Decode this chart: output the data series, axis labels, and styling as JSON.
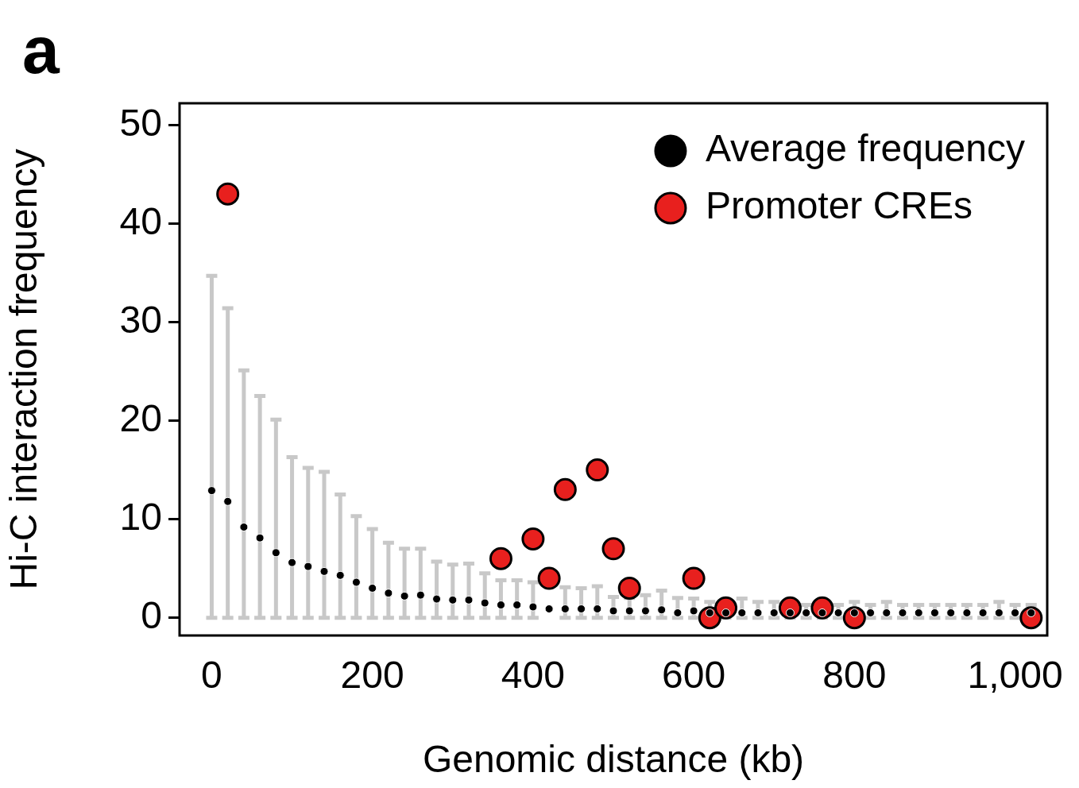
{
  "chart_data": {
    "type": "scatter",
    "annotations": [
      "a"
    ],
    "xlabel": "Genomic distance (kb)",
    "ylabel": "Hi-C interaction frequency",
    "xlim": [
      -40,
      1040
    ],
    "ylim": [
      -1.8,
      52.2
    ],
    "xticks": [
      0,
      200,
      400,
      600,
      800,
      {
        "value": 1000,
        "label": "1,000"
      }
    ],
    "yticks": [
      0,
      10,
      20,
      30,
      40,
      50
    ],
    "grid": false,
    "legend": "top right",
    "marker": "circle",
    "series": [
      {
        "name": "Average frequency",
        "color": "#000000",
        "x": [
          0,
          20,
          40,
          60,
          80,
          100,
          120,
          140,
          160,
          180,
          200,
          220,
          240,
          260,
          280,
          300,
          320,
          340,
          360,
          380,
          400,
          420,
          440,
          460,
          480,
          500,
          520,
          540,
          560,
          580,
          600,
          620,
          640,
          660,
          680,
          700,
          720,
          740,
          760,
          780,
          800,
          820,
          840,
          860,
          880,
          900,
          920,
          940,
          960,
          980,
          1000,
          1020
        ],
        "values": [
          12.9,
          11.8,
          9.2,
          8.1,
          6.6,
          5.6,
          5.2,
          4.7,
          4.3,
          3.6,
          3.0,
          2.5,
          2.2,
          2.3,
          1.9,
          1.8,
          1.8,
          1.5,
          1.3,
          1.3,
          1.1,
          0.9,
          0.9,
          0.9,
          0.9,
          0.7,
          0.7,
          0.7,
          0.8,
          0.5,
          0.7,
          0.5,
          0.5,
          0.5,
          0.5,
          0.5,
          0.5,
          0.5,
          0.5,
          0.5,
          0.5,
          0.5,
          0.5,
          0.5,
          0.5,
          0.5,
          0.5,
          0.5,
          0.5,
          0.5,
          0.5,
          0.5
        ],
        "errors": [
          [
            0,
            34.7
          ],
          [
            0,
            31.4
          ],
          [
            0,
            25.1
          ],
          [
            0,
            22.5
          ],
          [
            0,
            20.1
          ],
          [
            0,
            16.3
          ],
          [
            0,
            15.2
          ],
          [
            0,
            14.8
          ],
          [
            0,
            12.5
          ],
          [
            0,
            10.3
          ],
          [
            0,
            9.0
          ],
          [
            0,
            7.6
          ],
          [
            0,
            7.0
          ],
          [
            0,
            7.0
          ],
          [
            0,
            5.7
          ],
          [
            0,
            5.4
          ],
          [
            0,
            5.5
          ],
          [
            0,
            4.5
          ],
          [
            0,
            3.8
          ],
          [
            0,
            3.8
          ],
          [
            0,
            3.6
          ],
          null,
          [
            0,
            3.1
          ],
          [
            0,
            3.0
          ],
          [
            0,
            3.2
          ],
          [
            0,
            2.1
          ],
          [
            0,
            2.0
          ],
          [
            0,
            2.3
          ],
          [
            0,
            2.75
          ],
          [
            0,
            2.0
          ],
          [
            0,
            1.95
          ],
          [
            0,
            1.6
          ],
          [
            0,
            1.6
          ],
          [
            0,
            1.95
          ],
          [
            0,
            1.6
          ],
          [
            0,
            1.6
          ],
          [
            0,
            1.6
          ],
          [
            0,
            1.3
          ],
          [
            0,
            1.6
          ],
          [
            0,
            1.3
          ],
          [
            0,
            1.6
          ],
          [
            0,
            1.3
          ],
          [
            0,
            1.6
          ],
          [
            0,
            1.3
          ],
          [
            0,
            1.3
          ],
          [
            0,
            1.3
          ],
          [
            0,
            1.3
          ],
          [
            0,
            1.3
          ],
          [
            0,
            1.3
          ],
          [
            0,
            1.6
          ],
          [
            0,
            1.3
          ],
          [
            0,
            1.3
          ]
        ]
      },
      {
        "name": "Promoter CREs",
        "color": "#e8201e",
        "x": [
          20,
          360,
          400,
          420,
          440,
          480,
          500,
          520,
          600,
          620,
          640,
          720,
          760,
          800,
          1020
        ],
        "values": [
          43,
          6,
          8,
          4,
          13,
          15,
          7,
          3,
          4,
          0,
          1,
          1,
          1,
          0,
          0
        ]
      }
    ]
  }
}
